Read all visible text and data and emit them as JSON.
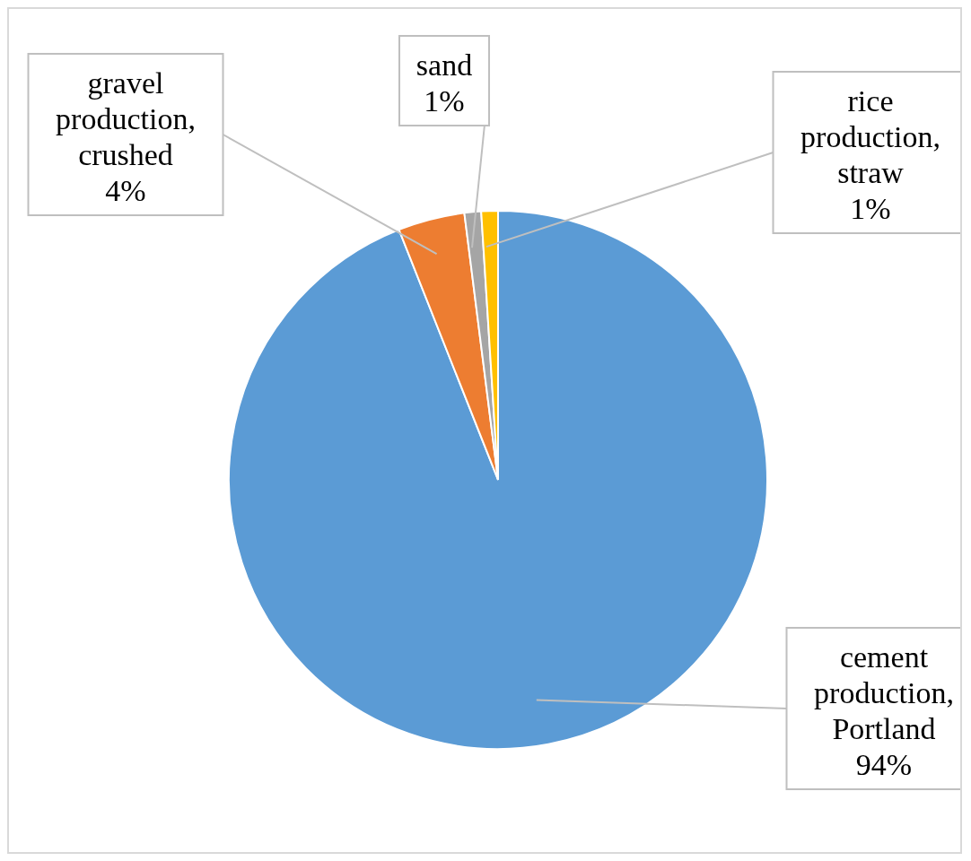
{
  "chart_data": {
    "type": "pie",
    "categories": [
      "cement production, Portland",
      "gravel production, crushed",
      "sand",
      "rice production, straw"
    ],
    "values": [
      94,
      4,
      1,
      1
    ],
    "colors": [
      "#5b9bd5",
      "#ed7d31",
      "#a5a5a5",
      "#ffc000"
    ],
    "value_labels": [
      "94%",
      "4%",
      "1%",
      "1%"
    ],
    "legend": false
  }
}
